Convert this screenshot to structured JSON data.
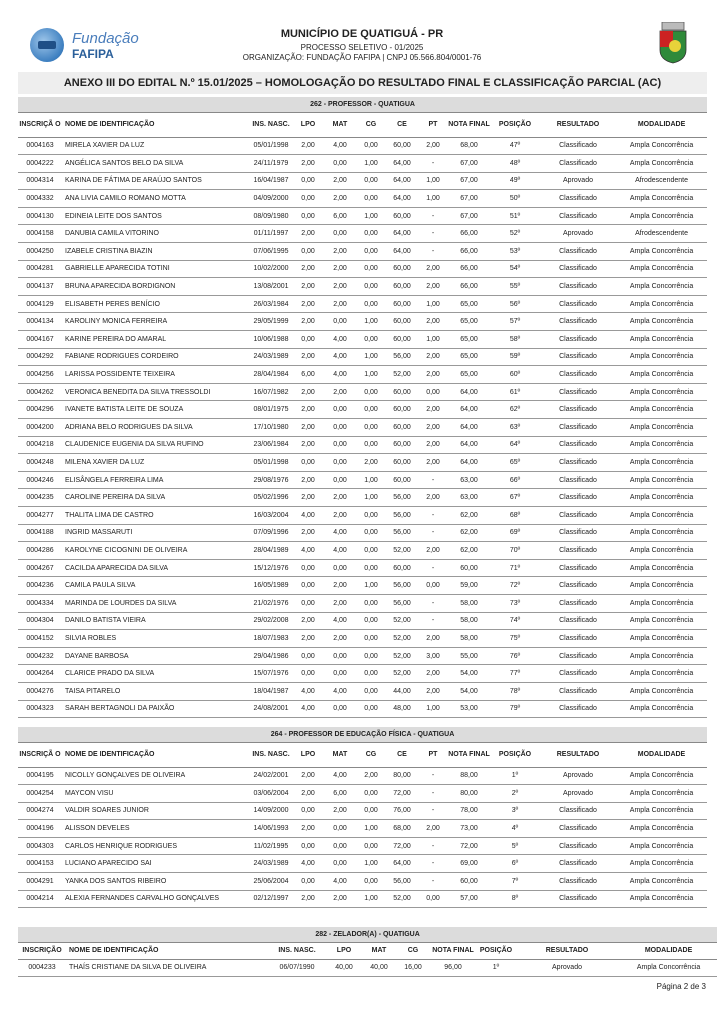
{
  "header": {
    "logo_text_1": "Fundação",
    "logo_text_2": "FAFIPA",
    "title": "MUNICÍPIO DE QUATIGUÁ - PR",
    "subtitle": "PROCESSO SELETIVO - 01/2025",
    "org": "ORGANIZAÇÃO: FUNDAÇÃO FAFIPA | CNPJ 05.566.804/0001-76"
  },
  "annex_title": "ANEXO III DO EDITAL N.º 15.01/2025 – HOMOLOGAÇÃO DO RESULTADO FINAL E CLASSIFICAÇÃO PARCIAL (AC)",
  "tables": [
    {
      "title": "262 - PROFESSOR  - QUATIGUA",
      "columns": [
        "INSCRIÇÃ O",
        "NOME DE IDENTIFICAÇÃO",
        "INS. NASC.",
        "LPO",
        "MAT",
        "CG",
        "CE",
        "PT",
        "NOTA FINAL",
        "POSIÇÃO",
        "RESULTADO",
        "MODALIDADE"
      ],
      "rows": [
        [
          "0004163",
          "MIRELA XAVIER DA LUZ",
          "05/01/1998",
          "2,00",
          "4,00",
          "0,00",
          "60,00",
          "2,00",
          "68,00",
          "47º",
          "Classificado",
          "Ampla Concorrência"
        ],
        [
          "0004222",
          "ANGÉLICA SANTOS BELO DA SILVA",
          "24/11/1979",
          "2,00",
          "0,00",
          "1,00",
          "64,00",
          "-",
          "67,00",
          "48º",
          "Classificado",
          "Ampla Concorrência"
        ],
        [
          "0004314",
          "KARINA DE FÁTIMA DE ARAÚJO SANTOS",
          "16/04/1987",
          "0,00",
          "2,00",
          "0,00",
          "64,00",
          "1,00",
          "67,00",
          "49º",
          "Aprovado",
          "Afrodescendente"
        ],
        [
          "0004332",
          "ANA LIVIA CAMILO ROMANO MOTTA",
          "04/09/2000",
          "0,00",
          "2,00",
          "0,00",
          "64,00",
          "1,00",
          "67,00",
          "50º",
          "Classificado",
          "Ampla Concorrência"
        ],
        [
          "0004130",
          "EDINEIA LEITE DOS SANTOS",
          "08/09/1980",
          "0,00",
          "6,00",
          "1,00",
          "60,00",
          "-",
          "67,00",
          "51º",
          "Classificado",
          "Ampla Concorrência"
        ],
        [
          "0004158",
          "DANUBIA CAMILA VITORINO",
          "01/11/1997",
          "2,00",
          "0,00",
          "0,00",
          "64,00",
          "-",
          "66,00",
          "52º",
          "Aprovado",
          "Afrodescendente"
        ],
        [
          "0004250",
          "IZABELE CRISTINA BIAZIN",
          "07/06/1995",
          "0,00",
          "2,00",
          "0,00",
          "64,00",
          "-",
          "66,00",
          "53º",
          "Classificado",
          "Ampla Concorrência"
        ],
        [
          "0004281",
          "GABRIELLE APARECIDA TOTINI",
          "10/02/2000",
          "2,00",
          "2,00",
          "0,00",
          "60,00",
          "2,00",
          "66,00",
          "54º",
          "Classificado",
          "Ampla Concorrência"
        ],
        [
          "0004137",
          "BRUNA APARECIDA BORDIGNON",
          "13/08/2001",
          "2,00",
          "2,00",
          "0,00",
          "60,00",
          "2,00",
          "66,00",
          "55º",
          "Classificado",
          "Ampla Concorrência"
        ],
        [
          "0004129",
          "ELISABETH PERES BENÍCIO",
          "26/03/1984",
          "2,00",
          "2,00",
          "0,00",
          "60,00",
          "1,00",
          "65,00",
          "56º",
          "Classificado",
          "Ampla Concorrência"
        ],
        [
          "0004134",
          "KAROLINY MONICA FERREIRA",
          "29/05/1999",
          "2,00",
          "0,00",
          "1,00",
          "60,00",
          "2,00",
          "65,00",
          "57º",
          "Classificado",
          "Ampla Concorrência"
        ],
        [
          "0004167",
          "KARINE PEREIRA DO AMARAL",
          "10/06/1988",
          "0,00",
          "4,00",
          "0,00",
          "60,00",
          "1,00",
          "65,00",
          "58º",
          "Classificado",
          "Ampla Concorrência"
        ],
        [
          "0004292",
          "FABIANE RODRIGUES CORDEIRO",
          "24/03/1989",
          "2,00",
          "4,00",
          "1,00",
          "56,00",
          "2,00",
          "65,00",
          "59º",
          "Classificado",
          "Ampla Concorrência"
        ],
        [
          "0004256",
          "LARISSA POSSIDENTE TEIXEIRA",
          "28/04/1984",
          "6,00",
          "4,00",
          "1,00",
          "52,00",
          "2,00",
          "65,00",
          "60º",
          "Classificado",
          "Ampla Concorrência"
        ],
        [
          "0004262",
          "VERONICA BENEDITA DA SILVA TRESSOLDI",
          "16/07/1982",
          "2,00",
          "2,00",
          "0,00",
          "60,00",
          "0,00",
          "64,00",
          "61º",
          "Classificado",
          "Ampla Concorrência"
        ],
        [
          "0004296",
          "IVANETE BATISTA LEITE DE SOUZA",
          "08/01/1975",
          "2,00",
          "0,00",
          "0,00",
          "60,00",
          "2,00",
          "64,00",
          "62º",
          "Classificado",
          "Ampla Concorrência"
        ],
        [
          "0004200",
          "ADRIANA BELO RODRIGUES DA SILVA",
          "17/10/1980",
          "2,00",
          "0,00",
          "0,00",
          "60,00",
          "2,00",
          "64,00",
          "63º",
          "Classificado",
          "Ampla Concorrência"
        ],
        [
          "0004218",
          "CLAUDENICE EUGENIA DA SILVA RUFINO",
          "23/06/1984",
          "2,00",
          "0,00",
          "0,00",
          "60,00",
          "2,00",
          "64,00",
          "64º",
          "Classificado",
          "Ampla Concorrência"
        ],
        [
          "0004248",
          "MILENA XAVIER DA LUZ",
          "05/01/1998",
          "0,00",
          "0,00",
          "2,00",
          "60,00",
          "2,00",
          "64,00",
          "65º",
          "Classificado",
          "Ampla Concorrência"
        ],
        [
          "0004246",
          "ELISÂNGELA FERREIRA LIMA",
          "29/08/1976",
          "2,00",
          "0,00",
          "1,00",
          "60,00",
          "-",
          "63,00",
          "66º",
          "Classificado",
          "Ampla Concorrência"
        ],
        [
          "0004235",
          "CAROLINE PEREIRA DA SILVA",
          "05/02/1996",
          "2,00",
          "2,00",
          "1,00",
          "56,00",
          "2,00",
          "63,00",
          "67º",
          "Classificado",
          "Ampla Concorrência"
        ],
        [
          "0004277",
          "THALITA LIMA DE CASTRO",
          "16/03/2004",
          "4,00",
          "2,00",
          "0,00",
          "56,00",
          "-",
          "62,00",
          "68º",
          "Classificado",
          "Ampla Concorrência"
        ],
        [
          "0004188",
          "INGRID MASSARUTI",
          "07/09/1996",
          "2,00",
          "4,00",
          "0,00",
          "56,00",
          "-",
          "62,00",
          "69º",
          "Classificado",
          "Ampla Concorrência"
        ],
        [
          "0004286",
          "KAROLYNE CICOGNINI DE OLIVEIRA",
          "28/04/1989",
          "4,00",
          "4,00",
          "0,00",
          "52,00",
          "2,00",
          "62,00",
          "70º",
          "Classificado",
          "Ampla Concorrência"
        ],
        [
          "0004267",
          "CACILDA APARECIDA DA SILVA",
          "15/12/1976",
          "0,00",
          "0,00",
          "0,00",
          "60,00",
          "-",
          "60,00",
          "71º",
          "Classificado",
          "Ampla Concorrência"
        ],
        [
          "0004236",
          "CAMILA PAULA SILVA",
          "16/05/1989",
          "0,00",
          "2,00",
          "1,00",
          "56,00",
          "0,00",
          "59,00",
          "72º",
          "Classificado",
          "Ampla Concorrência"
        ],
        [
          "0004334",
          "MARINDA DE LOURDES DA SILVA",
          "21/02/1976",
          "0,00",
          "2,00",
          "0,00",
          "56,00",
          "-",
          "58,00",
          "73º",
          "Classificado",
          "Ampla Concorrência"
        ],
        [
          "0004304",
          "DANILO BATISTA VIEIRA",
          "29/02/2008",
          "2,00",
          "4,00",
          "0,00",
          "52,00",
          "-",
          "58,00",
          "74º",
          "Classificado",
          "Ampla Concorrência"
        ],
        [
          "0004152",
          "SILVIA ROBLES",
          "18/07/1983",
          "2,00",
          "2,00",
          "0,00",
          "52,00",
          "2,00",
          "58,00",
          "75º",
          "Classificado",
          "Ampla Concorrência"
        ],
        [
          "0004232",
          "DAYANE BARBOSA",
          "29/04/1986",
          "0,00",
          "0,00",
          "0,00",
          "52,00",
          "3,00",
          "55,00",
          "76º",
          "Classificado",
          "Ampla Concorrência"
        ],
        [
          "0004264",
          "CLARICE PRADO DA SILVA",
          "15/07/1976",
          "0,00",
          "0,00",
          "0,00",
          "52,00",
          "2,00",
          "54,00",
          "77º",
          "Classificado",
          "Ampla Concorrência"
        ],
        [
          "0004276",
          "TAISA PITARELO",
          "18/04/1987",
          "4,00",
          "4,00",
          "0,00",
          "44,00",
          "2,00",
          "54,00",
          "78º",
          "Classificado",
          "Ampla Concorrência"
        ],
        [
          "0004323",
          "SARAH BERTAGNOLI DA PAIXÃO",
          "24/08/2001",
          "4,00",
          "0,00",
          "0,00",
          "48,00",
          "1,00",
          "53,00",
          "79º",
          "Classificado",
          "Ampla Concorrência"
        ]
      ]
    },
    {
      "title": "264 - PROFESSOR DE EDUCAÇÃO FÍSICA - QUATIGUA",
      "columns": [
        "INSCRIÇÃ O",
        "NOME DE IDENTIFICAÇÃO",
        "INS. NASC.",
        "LPO",
        "MAT",
        "CG",
        "CE",
        "PT",
        "NOTA FINAL",
        "POSIÇÃO",
        "RESULTADO",
        "MODALIDADE"
      ],
      "rows": [
        [
          "0004195",
          "NICOLLY GONÇALVES DE OLIVEIRA",
          "24/02/2001",
          "2,00",
          "4,00",
          "2,00",
          "80,00",
          "-",
          "88,00",
          "1º",
          "Aprovado",
          "Ampla Concorrência"
        ],
        [
          "0004254",
          "MAYCON VISU",
          "03/06/2004",
          "2,00",
          "6,00",
          "0,00",
          "72,00",
          "-",
          "80,00",
          "2º",
          "Aprovado",
          "Ampla Concorrência"
        ],
        [
          "0004274",
          "VALDIR SOARES JUNIOR",
          "14/09/2000",
          "0,00",
          "2,00",
          "0,00",
          "76,00",
          "-",
          "78,00",
          "3º",
          "Classificado",
          "Ampla Concorrência"
        ],
        [
          "0004196",
          "ALISSON DEVELES",
          "14/06/1993",
          "2,00",
          "0,00",
          "1,00",
          "68,00",
          "2,00",
          "73,00",
          "4º",
          "Classificado",
          "Ampla Concorrência"
        ],
        [
          "0004303",
          "CARLOS HENRIQUE RODRIGUES",
          "11/02/1995",
          "0,00",
          "0,00",
          "0,00",
          "72,00",
          "-",
          "72,00",
          "5º",
          "Classificado",
          "Ampla Concorrência"
        ],
        [
          "0004153",
          "LUCIANO APARECIDO SAI",
          "24/03/1989",
          "4,00",
          "0,00",
          "1,00",
          "64,00",
          "-",
          "69,00",
          "6º",
          "Classificado",
          "Ampla Concorrência"
        ],
        [
          "0004291",
          "YANKA DOS SANTOS RIBEIRO",
          "25/06/2004",
          "0,00",
          "4,00",
          "0,00",
          "56,00",
          "-",
          "60,00",
          "7º",
          "Classificado",
          "Ampla Concorrência"
        ],
        [
          "0004214",
          "ALEXIA FERNANDES CARVALHO GONÇALVES",
          "02/12/1997",
          "2,00",
          "2,00",
          "1,00",
          "52,00",
          "0,00",
          "57,00",
          "8º",
          "Classificado",
          "Ampla Concorrência"
        ]
      ]
    },
    {
      "title": "282 - ZELADOR(A) - QUATIGUA",
      "columns": [
        "INSCRIÇÃO",
        "NOME DE IDENTIFICAÇÃO",
        "INS. NASC.",
        "LPO",
        "MAT",
        "CG",
        "NOTA FINAL",
        "POSIÇÃO",
        "RESULTADO",
        "MODALIDADE"
      ],
      "rows": [
        [
          "0004233",
          "THAÍS CRISTIANE DA SILVA DE OLIVEIRA",
          "06/07/1990",
          "40,00",
          "40,00",
          "16,00",
          "96,00",
          "1º",
          "Aprovado",
          "Ampla Concorrência"
        ]
      ]
    }
  ],
  "footer": {
    "page": "Página 2 de 3"
  }
}
